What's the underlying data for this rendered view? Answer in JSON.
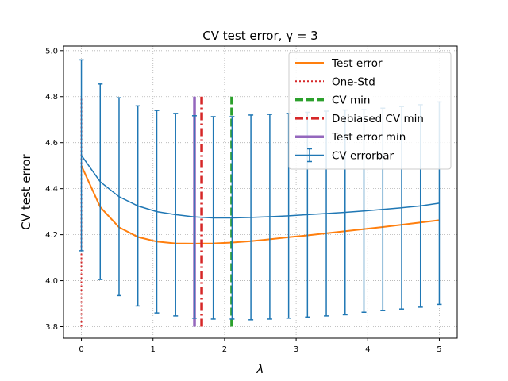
{
  "chart_data": {
    "type": "line",
    "title": "CV test error, γ = 3",
    "xlabel": "λ",
    "ylabel": "CV test error",
    "xlim": [
      -0.25,
      5.25
    ],
    "ylim": [
      3.75,
      5.02
    ],
    "x_ticks": [
      0,
      1,
      2,
      3,
      4,
      5
    ],
    "y_ticks": [
      3.8,
      4.0,
      4.2,
      4.4,
      4.6,
      4.8,
      5.0
    ],
    "x_tick_labels": [
      "0",
      "1",
      "2",
      "3",
      "4",
      "5"
    ],
    "y_tick_labels": [
      "3.8",
      "4.0",
      "4.2",
      "4.4",
      "4.6",
      "4.8",
      "5.0"
    ],
    "grid": true,
    "legend_position": "top-right",
    "series": [
      {
        "name": "Test error",
        "color": "#ff7f0e",
        "style": "solid",
        "x": [
          0,
          0.263,
          0.526,
          0.789,
          1.053,
          1.316,
          1.579,
          1.842,
          2.105,
          2.368,
          2.632,
          2.895,
          3.158,
          3.421,
          3.684,
          3.947,
          4.211,
          4.474,
          4.737,
          5.0
        ],
        "y": [
          4.5,
          4.32,
          4.232,
          4.19,
          4.17,
          4.162,
          4.161,
          4.162,
          4.166,
          4.172,
          4.18,
          4.189,
          4.197,
          4.206,
          4.215,
          4.224,
          4.233,
          4.243,
          4.253,
          4.263
        ]
      },
      {
        "name": "One-Std",
        "color": "#d62728",
        "style": "dotted",
        "x": [
          0,
          0
        ],
        "y": [
          3.8,
          4.8
        ]
      },
      {
        "name": "CV min",
        "color": "#2ca02c",
        "style": "dashed",
        "x": [
          2.1,
          2.1
        ],
        "y": [
          3.8,
          4.8
        ]
      },
      {
        "name": "Debiased CV min",
        "color": "#d62728",
        "style": "dashdot",
        "x": [
          1.68,
          1.68
        ],
        "y": [
          3.8,
          4.8
        ]
      },
      {
        "name": "Test error min",
        "color": "#9467bd",
        "style": "solid",
        "x": [
          1.58,
          1.58
        ],
        "y": [
          3.8,
          4.8
        ]
      },
      {
        "name": "CV errorbar",
        "color": "#1f77b4",
        "style": "errorbar",
        "x": [
          0,
          0.263,
          0.526,
          0.789,
          1.053,
          1.316,
          1.579,
          1.842,
          2.105,
          2.368,
          2.632,
          2.895,
          3.158,
          3.421,
          3.684,
          3.947,
          4.211,
          4.474,
          4.737,
          5.0
        ],
        "y": [
          4.545,
          4.43,
          4.365,
          4.325,
          4.3,
          4.287,
          4.277,
          4.273,
          4.273,
          4.275,
          4.278,
          4.282,
          4.287,
          4.292,
          4.297,
          4.303,
          4.31,
          4.317,
          4.325,
          4.337
        ],
        "err": [
          0.415,
          0.425,
          0.43,
          0.435,
          0.44,
          0.44,
          0.44,
          0.44,
          0.44,
          0.445,
          0.445,
          0.445,
          0.445,
          0.445,
          0.445,
          0.44,
          0.44,
          0.44,
          0.44,
          0.44
        ]
      }
    ],
    "legend": [
      {
        "label": "Test error",
        "color": "#ff7f0e",
        "style": "solid"
      },
      {
        "label": "One-Std",
        "color": "#d62728",
        "style": "dotted"
      },
      {
        "label": "CV min",
        "color": "#2ca02c",
        "style": "dashed"
      },
      {
        "label": "Debiased CV min",
        "color": "#d62728",
        "style": "dashdot"
      },
      {
        "label": "Test error min",
        "color": "#9467bd",
        "style": "solid"
      },
      {
        "label": "CV errorbar",
        "color": "#1f77b4",
        "style": "errorbar"
      }
    ]
  }
}
